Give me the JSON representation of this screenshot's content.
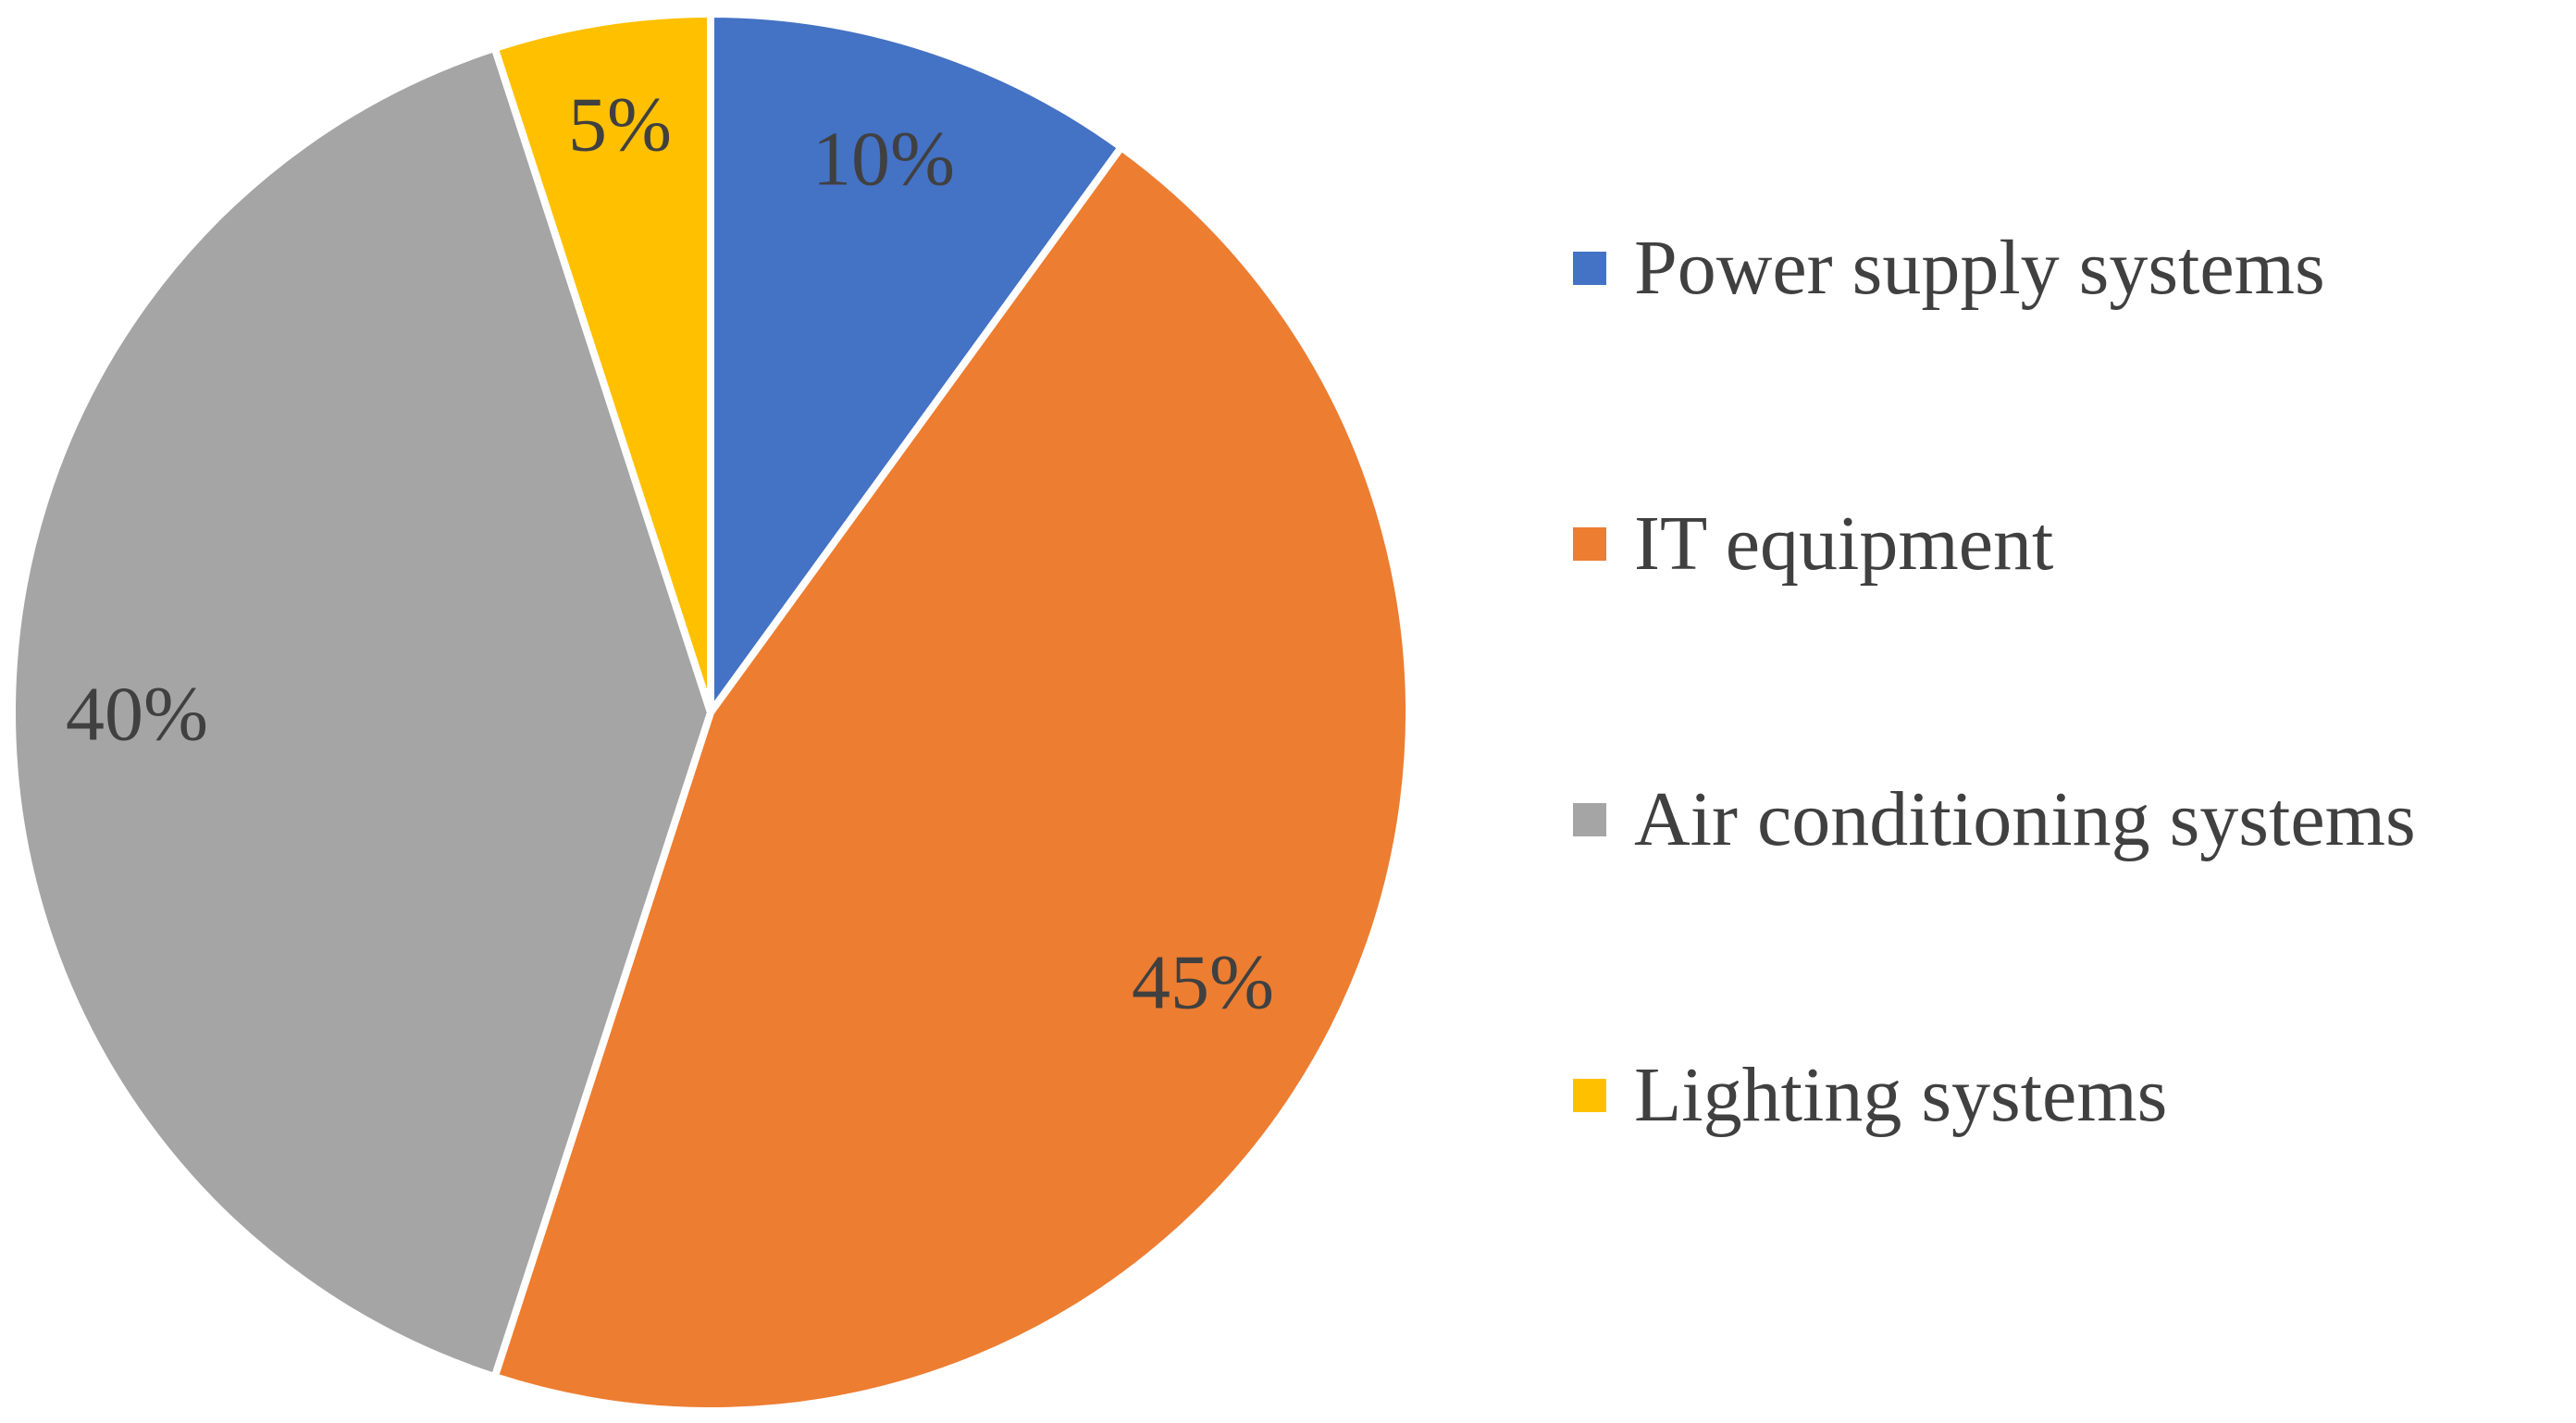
{
  "chart_data": {
    "type": "pie",
    "title": "",
    "categories": [
      "Power supply systems",
      "IT equipment",
      "Air conditioning systems",
      "Lighting systems"
    ],
    "values": [
      10,
      45,
      40,
      5
    ],
    "labels": [
      "10%",
      "45%",
      "40%",
      "5%"
    ],
    "colors": [
      "#4472C4",
      "#ED7D31",
      "#A5A5A5",
      "#FFC000"
    ],
    "start_angle_deg": 0,
    "direction": "clockwise",
    "legend_position": "right",
    "label_color": "#404040",
    "separator_color": "#ffffff"
  }
}
